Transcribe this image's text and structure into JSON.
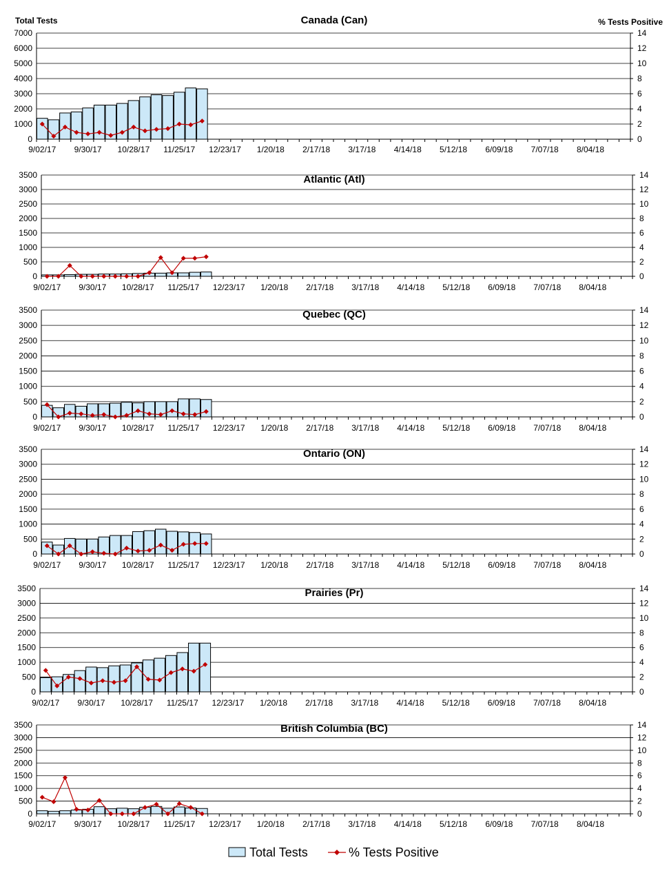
{
  "legend": {
    "bar_label": "Total Tests",
    "line_label": "% Tests Positive"
  },
  "colors": {
    "bar_fill": "#cce8f8",
    "line": "#c00000"
  },
  "chart_data": [
    {
      "type": "bar",
      "title": "Canada (Can)",
      "ylabel": "Total Tests",
      "y2label": "% Tests Positive",
      "ylim": [
        0,
        7000
      ],
      "yticks": [
        0,
        1000,
        2000,
        3000,
        4000,
        5000,
        6000,
        7000
      ],
      "y2lim": [
        0,
        14
      ],
      "y2ticks": [
        0,
        2,
        4,
        6,
        8,
        10,
        12,
        14
      ],
      "x_tick_labels": [
        "9/02/17",
        "9/30/17",
        "10/28/17",
        "11/25/17",
        "12/23/17",
        "1/20/18",
        "2/17/18",
        "3/17/18",
        "4/14/18",
        "5/12/18",
        "6/09/18",
        "7/07/18",
        "8/04/18"
      ],
      "grid": "horizontal",
      "legend": "bottom",
      "n_weeks": 52,
      "series": [
        {
          "name": "Total Tests",
          "axis": "left",
          "values": [
            1380,
            1280,
            1730,
            1800,
            2060,
            2250,
            2250,
            2360,
            2550,
            2790,
            2930,
            2880,
            3100,
            3380,
            3320
          ]
        },
        {
          "name": "% Tests Positive",
          "axis": "right",
          "values": [
            2.0,
            0.4,
            1.6,
            0.9,
            0.7,
            0.9,
            0.5,
            0.9,
            1.6,
            1.1,
            1.3,
            1.4,
            2.0,
            1.9,
            2.4
          ]
        }
      ]
    },
    {
      "type": "bar",
      "title": "Atlantic (Atl)",
      "ylim": [
        0,
        3500
      ],
      "yticks": [
        0,
        500,
        1000,
        1500,
        2000,
        2500,
        3000,
        3500
      ],
      "y2lim": [
        0,
        14
      ],
      "y2ticks": [
        0,
        2,
        4,
        6,
        8,
        10,
        12,
        14
      ],
      "x_tick_labels": [
        "9/02/17",
        "9/30/17",
        "10/28/17",
        "11/25/17",
        "12/23/17",
        "1/20/18",
        "2/17/18",
        "3/17/18",
        "4/14/18",
        "5/12/18",
        "6/09/18",
        "7/07/18",
        "8/04/18"
      ],
      "grid": "horizontal",
      "n_weeks": 52,
      "series": [
        {
          "name": "Total Tests",
          "axis": "left",
          "values": [
            50,
            50,
            60,
            70,
            70,
            80,
            80,
            90,
            100,
            110,
            110,
            120,
            120,
            140,
            150
          ]
        },
        {
          "name": "% Tests Positive",
          "axis": "right",
          "values": [
            0.0,
            0.0,
            1.5,
            0.0,
            0.0,
            0.0,
            0.0,
            0.0,
            0.0,
            0.5,
            2.6,
            0.5,
            2.5,
            2.5,
            2.7
          ]
        }
      ]
    },
    {
      "type": "bar",
      "title": "Quebec (QC)",
      "ylim": [
        0,
        3500
      ],
      "yticks": [
        0,
        500,
        1000,
        1500,
        2000,
        2500,
        3000,
        3500
      ],
      "y2lim": [
        0,
        14
      ],
      "y2ticks": [
        0,
        2,
        4,
        6,
        8,
        10,
        12,
        14
      ],
      "x_tick_labels": [
        "9/02/17",
        "9/30/17",
        "10/28/17",
        "11/25/17",
        "12/23/17",
        "1/20/18",
        "2/17/18",
        "3/17/18",
        "4/14/18",
        "5/12/18",
        "6/09/18",
        "7/07/18",
        "8/04/18"
      ],
      "grid": "horizontal",
      "n_weeks": 52,
      "series": [
        {
          "name": "Total Tests",
          "axis": "left",
          "values": [
            380,
            300,
            410,
            350,
            430,
            430,
            450,
            480,
            460,
            500,
            500,
            500,
            590,
            590,
            570
          ]
        },
        {
          "name": "% Tests Positive",
          "axis": "right",
          "values": [
            1.6,
            0.0,
            0.5,
            0.4,
            0.2,
            0.3,
            0.0,
            0.2,
            0.8,
            0.4,
            0.3,
            0.8,
            0.4,
            0.3,
            0.7
          ]
        }
      ]
    },
    {
      "type": "bar",
      "title": "Ontario (ON)",
      "ylim": [
        0,
        3500
      ],
      "yticks": [
        0,
        500,
        1000,
        1500,
        2000,
        2500,
        3000,
        3500
      ],
      "y2lim": [
        0,
        14
      ],
      "y2ticks": [
        0,
        2,
        4,
        6,
        8,
        10,
        12,
        14
      ],
      "x_tick_labels": [
        "9/02/17",
        "9/30/17",
        "10/28/17",
        "11/25/17",
        "12/23/17",
        "1/20/18",
        "2/17/18",
        "3/17/18",
        "4/14/18",
        "5/12/18",
        "6/09/18",
        "7/07/18",
        "8/04/18"
      ],
      "grid": "horizontal",
      "n_weeks": 52,
      "series": [
        {
          "name": "Total Tests",
          "axis": "left",
          "values": [
            400,
            300,
            520,
            500,
            500,
            570,
            620,
            620,
            750,
            780,
            830,
            760,
            740,
            720,
            670
          ]
        },
        {
          "name": "% Tests Positive",
          "axis": "right",
          "values": [
            1.1,
            0.0,
            1.1,
            0.0,
            0.3,
            0.1,
            0.0,
            0.8,
            0.4,
            0.5,
            1.2,
            0.5,
            1.3,
            1.4,
            1.4
          ]
        }
      ]
    },
    {
      "type": "bar",
      "title": "Prairies (Pr)",
      "ylim": [
        0,
        3500
      ],
      "yticks": [
        0,
        500,
        1000,
        1500,
        2000,
        2500,
        3000,
        3500
      ],
      "y2lim": [
        0,
        14
      ],
      "y2ticks": [
        0,
        2,
        4,
        6,
        8,
        10,
        12,
        14
      ],
      "x_tick_labels": [
        "9/02/17",
        "9/30/17",
        "10/28/17",
        "11/25/17",
        "12/23/17",
        "1/20/18",
        "2/17/18",
        "3/17/18",
        "4/14/18",
        "5/12/18",
        "6/09/18",
        "7/07/18",
        "8/04/18"
      ],
      "grid": "horizontal",
      "n_weeks": 52,
      "series": [
        {
          "name": "Total Tests",
          "axis": "left",
          "values": [
            480,
            510,
            590,
            720,
            840,
            820,
            880,
            910,
            980,
            1080,
            1140,
            1230,
            1330,
            1650,
            1650
          ]
        },
        {
          "name": "% Tests Positive",
          "axis": "right",
          "values": [
            2.9,
            0.8,
            2.0,
            1.8,
            1.2,
            1.5,
            1.3,
            1.5,
            3.4,
            1.7,
            1.6,
            2.6,
            3.1,
            2.8,
            3.7
          ]
        }
      ]
    },
    {
      "type": "bar",
      "title": "British Columbia (BC)",
      "ylim": [
        0,
        3500
      ],
      "yticks": [
        0,
        500,
        1000,
        1500,
        2000,
        2500,
        3000,
        3500
      ],
      "y2lim": [
        0,
        14
      ],
      "y2ticks": [
        0,
        2,
        4,
        6,
        8,
        10,
        12,
        14
      ],
      "x_tick_labels": [
        "9/02/17",
        "9/30/17",
        "10/28/17",
        "11/25/17",
        "12/23/17",
        "1/20/18",
        "2/17/18",
        "3/17/18",
        "4/14/18",
        "5/12/18",
        "6/09/18",
        "7/07/18",
        "8/04/18"
      ],
      "grid": "horizontal",
      "n_weeks": 52,
      "series": [
        {
          "name": "Total Tests",
          "axis": "left",
          "values": [
            120,
            100,
            120,
            150,
            180,
            280,
            200,
            220,
            200,
            260,
            290,
            220,
            270,
            230,
            210
          ]
        },
        {
          "name": "% Tests Positive",
          "axis": "right",
          "values": [
            2.6,
            1.9,
            5.7,
            0.7,
            0.6,
            2.1,
            0.0,
            0.0,
            0.0,
            1.0,
            1.5,
            0.0,
            1.6,
            1.0,
            0.0
          ]
        }
      ]
    }
  ]
}
